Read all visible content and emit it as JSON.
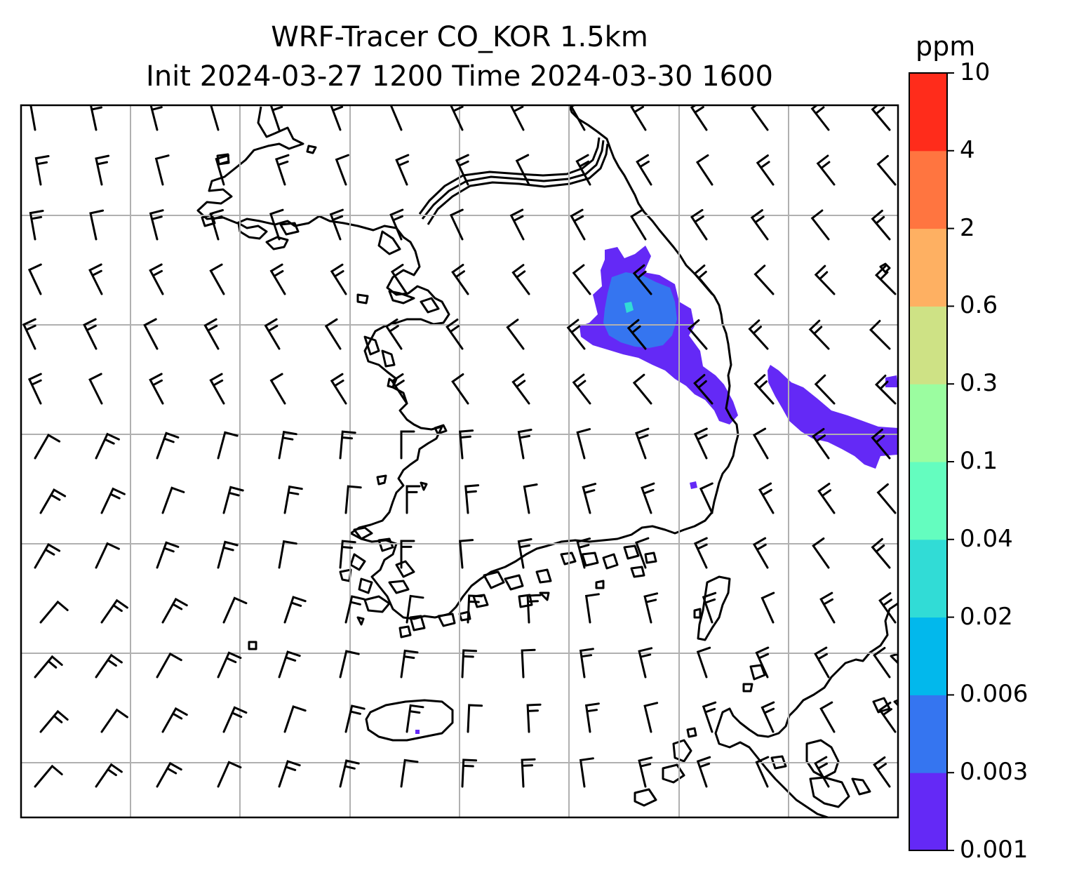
{
  "title": {
    "line1": "WRF-Tracer CO_KOR 1.5km",
    "line2": "Init 2024-03-27 1200 Time 2024-03-30 1600"
  },
  "colorbar": {
    "units": "ppm",
    "levels": [
      "0.001",
      "0.003",
      "0.006",
      "0.02",
      "0.04",
      "0.1",
      "0.3",
      "0.6",
      "2",
      "4",
      "10"
    ],
    "colors": [
      "#6429f6",
      "#3575f0",
      "#02b8ec",
      "#31dcd6",
      "#64fdbf",
      "#9bfda0",
      "#cee285",
      "#feb062",
      "#ff7540",
      "#ff2c1b"
    ]
  },
  "map": {
    "gridlines": true,
    "basemap": "korean-peninsula-coastline",
    "overlay": "wind-barbs",
    "plume_colors": {
      "low": "#6429f6",
      "mid": "#3575f0",
      "core": "#31dcd6"
    }
  }
}
